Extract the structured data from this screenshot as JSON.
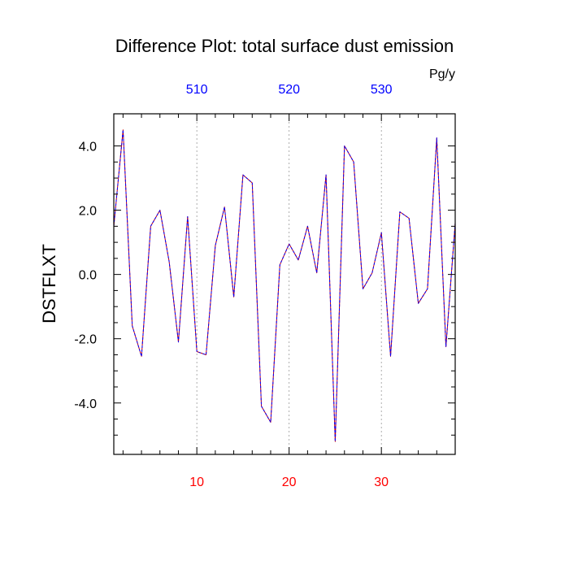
{
  "chart_data": {
    "type": "line",
    "title": "Difference Plot: total surface dust emission",
    "units": "Pg/y",
    "ylabel": "DSTFLXT",
    "xlabel": "",
    "xlim": [
      1,
      38
    ],
    "ylim": [
      -5.6,
      5.0
    ],
    "x_ticks_bottom": [
      10,
      20,
      30
    ],
    "x_tick_labels_bottom": [
      "10",
      "20",
      "30"
    ],
    "x_ticks_top": [
      10,
      20,
      30
    ],
    "x_tick_labels_top": [
      "510",
      "520",
      "530"
    ],
    "y_ticks": [
      -4,
      -2,
      0,
      2,
      4
    ],
    "y_tick_labels": [
      "-4.0",
      "-2.0",
      "0.0",
      "2.0",
      "4.0"
    ],
    "grid": "vertical dotted at major x ticks",
    "colors": {
      "bottom_tick_labels": "#ff0000",
      "top_tick_labels": "#0000ff",
      "line_primary": "#0000ff",
      "line_secondary": "#cc0000",
      "frame": "#000000",
      "grid": "#999999"
    },
    "series": [
      {
        "x": [
          1,
          2,
          3,
          4,
          5,
          6,
          7,
          8,
          9,
          10,
          11,
          12,
          13,
          14,
          15,
          16,
          17,
          18,
          19,
          20,
          21,
          22,
          23,
          24,
          25,
          26,
          27,
          28,
          29,
          30,
          31,
          32,
          33,
          34,
          35,
          36,
          37,
          38
        ],
        "values": [
          1.5,
          4.5,
          -1.6,
          -2.55,
          1.5,
          2.0,
          0.4,
          -2.1,
          1.8,
          -2.4,
          -2.5,
          0.9,
          2.1,
          -0.7,
          3.1,
          2.85,
          -4.1,
          -4.6,
          0.3,
          0.95,
          0.45,
          1.5,
          0.05,
          3.1,
          -5.2,
          4.0,
          3.5,
          -0.45,
          0.05,
          1.3,
          -2.55,
          1.95,
          1.75,
          -0.9,
          -0.45,
          4.25,
          -2.25,
          1.6
        ]
      }
    ]
  }
}
